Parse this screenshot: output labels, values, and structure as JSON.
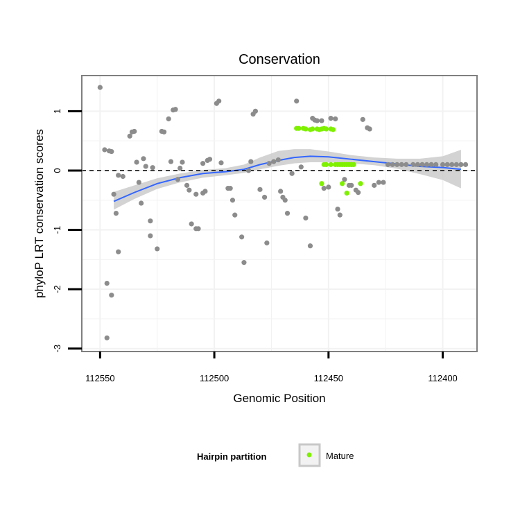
{
  "chart_data": {
    "type": "scatter",
    "title": "Conservation",
    "xlabel": "Genomic Position",
    "ylabel": "phyloP LRT conservation scores",
    "x_reversed": true,
    "xlim": [
      112558,
      112385
    ],
    "ylim": [
      -3.05,
      1.6
    ],
    "x_ticks": [
      112550,
      112500,
      112450,
      112400
    ],
    "y_ticks": [
      -3,
      -2,
      -1,
      0,
      1
    ],
    "reference_line_y": 0,
    "legend": {
      "title": "Hairpin partition",
      "position": "bottom",
      "entries": [
        {
          "label": "Mature",
          "color": "#7ff000"
        }
      ]
    },
    "colors": {
      "other": "#8c8c8c",
      "mature": "#7ff000",
      "smooth": "#3366ff",
      "band": "#c8c8c8"
    },
    "series": [
      {
        "name": "Other",
        "points": [
          [
            112550,
            1.4
          ],
          [
            112548,
            0.35
          ],
          [
            112546,
            0.33
          ],
          [
            112545,
            0.32
          ],
          [
            112542,
            -0.08
          ],
          [
            112540,
            -0.1
          ],
          [
            112544,
            -0.4
          ],
          [
            112543,
            -0.72
          ],
          [
            112542,
            -1.37
          ],
          [
            112545,
            -2.1
          ],
          [
            112547,
            -1.9
          ],
          [
            112547,
            -2.82
          ],
          [
            112537,
            0.58
          ],
          [
            112536,
            0.65
          ],
          [
            112535,
            0.66
          ],
          [
            112534,
            0.14
          ],
          [
            112533,
            -0.2
          ],
          [
            112532,
            -0.55
          ],
          [
            112531,
            0.2
          ],
          [
            112528,
            -0.85
          ],
          [
            112528,
            -1.1
          ],
          [
            112525,
            -1.32
          ],
          [
            112530,
            0.07
          ],
          [
            112527,
            0.05
          ],
          [
            112523,
            0.66
          ],
          [
            112522,
            0.65
          ],
          [
            112520,
            0.87
          ],
          [
            112518,
            1.02
          ],
          [
            112517,
            1.03
          ],
          [
            112519,
            0.15
          ],
          [
            112514,
            0.14
          ],
          [
            112516,
            -0.15
          ],
          [
            112512,
            -0.25
          ],
          [
            112515,
            0.04
          ],
          [
            112511,
            -0.33
          ],
          [
            112510,
            -0.9
          ],
          [
            112508,
            -0.98
          ],
          [
            112507,
            -0.98
          ],
          [
            112508,
            -0.4
          ],
          [
            112505,
            -0.38
          ],
          [
            112504,
            -0.35
          ],
          [
            112505,
            0.12
          ],
          [
            112503,
            0.17
          ],
          [
            112502,
            0.19
          ],
          [
            112499,
            1.13
          ],
          [
            112498,
            1.17
          ],
          [
            112497,
            0.13
          ],
          [
            112494,
            -0.3
          ],
          [
            112493,
            -0.3
          ],
          [
            112492,
            -0.5
          ],
          [
            112491,
            -0.75
          ],
          [
            112488,
            -1.12
          ],
          [
            112487,
            -1.55
          ],
          [
            112485,
            0.0
          ],
          [
            112484,
            0.15
          ],
          [
            112483,
            0.95
          ],
          [
            112482,
            1.0
          ],
          [
            112480,
            -0.32
          ],
          [
            112478,
            -0.45
          ],
          [
            112477,
            -1.22
          ],
          [
            112476,
            0.12
          ],
          [
            112474,
            0.15
          ],
          [
            112472,
            0.18
          ],
          [
            112471,
            -0.35
          ],
          [
            112470,
            -0.45
          ],
          [
            112469,
            -0.5
          ],
          [
            112468,
            -0.72
          ],
          [
            112466,
            -0.05
          ],
          [
            112464,
            1.17
          ],
          [
            112462,
            0.06
          ],
          [
            112460,
            -0.8
          ],
          [
            112458,
            -1.27
          ],
          [
            112457,
            0.88
          ],
          [
            112456,
            0.85
          ],
          [
            112455,
            0.84
          ],
          [
            112453,
            0.84
          ],
          [
            112452,
            -0.3
          ],
          [
            112450,
            -0.28
          ],
          [
            112449,
            0.88
          ],
          [
            112447,
            0.87
          ],
          [
            112446,
            -0.65
          ],
          [
            112445,
            -0.75
          ],
          [
            112443,
            -0.15
          ],
          [
            112441,
            -0.25
          ],
          [
            112440,
            -0.25
          ],
          [
            112438,
            -0.33
          ],
          [
            112437,
            -0.37
          ],
          [
            112435,
            0.86
          ],
          [
            112433,
            0.72
          ],
          [
            112432,
            0.7
          ],
          [
            112430,
            -0.25
          ],
          [
            112428,
            -0.2
          ],
          [
            112426,
            -0.2
          ],
          [
            112424,
            0.1
          ],
          [
            112422,
            0.1
          ],
          [
            112420,
            0.1
          ],
          [
            112418,
            0.1
          ],
          [
            112416,
            0.1
          ],
          [
            112413,
            0.1
          ],
          [
            112411,
            0.1
          ],
          [
            112409,
            0.1
          ],
          [
            112407,
            0.1
          ],
          [
            112405,
            0.1
          ],
          [
            112403,
            0.1
          ],
          [
            112400,
            0.1
          ],
          [
            112398,
            0.1
          ],
          [
            112396,
            0.1
          ],
          [
            112394,
            0.1
          ],
          [
            112392,
            0.1
          ],
          [
            112390,
            0.1
          ]
        ]
      },
      {
        "name": "Mature",
        "points": [
          [
            112464,
            0.71
          ],
          [
            112463,
            0.71
          ],
          [
            112461,
            0.71
          ],
          [
            112460,
            0.7
          ],
          [
            112458,
            0.69
          ],
          [
            112457,
            0.7
          ],
          [
            112455,
            0.7
          ],
          [
            112454,
            0.69
          ],
          [
            112453,
            0.7
          ],
          [
            112452,
            0.71
          ],
          [
            112451,
            0.7
          ],
          [
            112449,
            0.7
          ],
          [
            112448,
            0.69
          ],
          [
            112447,
            0.1
          ],
          [
            112445,
            0.1
          ],
          [
            112444,
            0.1
          ],
          [
            112443,
            0.1
          ],
          [
            112441,
            0.1
          ],
          [
            112440,
            0.1
          ],
          [
            112439,
            0.1
          ],
          [
            112446,
            0.1
          ],
          [
            112442,
            0.1
          ],
          [
            112444,
            -0.22
          ],
          [
            112453,
            -0.22
          ],
          [
            112436,
            -0.22
          ],
          [
            112442,
            -0.38
          ],
          [
            112452,
            0.1
          ],
          [
            112451,
            0.1
          ],
          [
            112449,
            0.1
          ],
          [
            112440,
            0.1
          ]
        ]
      }
    ],
    "smooth_line": [
      [
        112544,
        -0.52
      ],
      [
        112535,
        -0.37
      ],
      [
        112525,
        -0.22
      ],
      [
        112515,
        -0.12
      ],
      [
        112505,
        -0.05
      ],
      [
        112495,
        -0.02
      ],
      [
        112487,
        0.02
      ],
      [
        112480,
        0.1
      ],
      [
        112472,
        0.17
      ],
      [
        112465,
        0.22
      ],
      [
        112458,
        0.24
      ],
      [
        112450,
        0.23
      ],
      [
        112440,
        0.19
      ],
      [
        112430,
        0.15
      ],
      [
        112420,
        0.11
      ],
      [
        112410,
        0.07
      ],
      [
        112400,
        0.05
      ],
      [
        112392,
        0.02
      ]
    ],
    "confidence_band": {
      "upper": [
        [
          112544,
          -0.36
        ],
        [
          112535,
          -0.25
        ],
        [
          112525,
          -0.13
        ],
        [
          112515,
          -0.05
        ],
        [
          112505,
          0.01
        ],
        [
          112495,
          0.04
        ],
        [
          112487,
          0.1
        ],
        [
          112480,
          0.22
        ],
        [
          112472,
          0.33
        ],
        [
          112465,
          0.36
        ],
        [
          112458,
          0.36
        ],
        [
          112450,
          0.32
        ],
        [
          112440,
          0.26
        ],
        [
          112430,
          0.22
        ],
        [
          112420,
          0.2
        ],
        [
          112410,
          0.2
        ],
        [
          112400,
          0.24
        ],
        [
          112392,
          0.35
        ]
      ],
      "lower": [
        [
          112544,
          -0.66
        ],
        [
          112535,
          -0.48
        ],
        [
          112525,
          -0.31
        ],
        [
          112515,
          -0.2
        ],
        [
          112505,
          -0.12
        ],
        [
          112495,
          -0.08
        ],
        [
          112487,
          -0.04
        ],
        [
          112480,
          0.02
        ],
        [
          112472,
          0.08
        ],
        [
          112465,
          0.12
        ],
        [
          112458,
          0.14
        ],
        [
          112450,
          0.14
        ],
        [
          112440,
          0.12
        ],
        [
          112430,
          0.09
        ],
        [
          112420,
          0.03
        ],
        [
          112410,
          -0.06
        ],
        [
          112400,
          -0.16
        ],
        [
          112392,
          -0.3
        ]
      ]
    }
  }
}
